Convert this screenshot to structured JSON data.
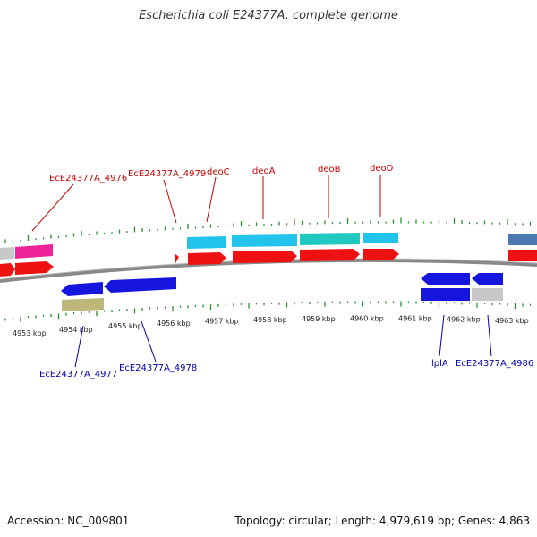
{
  "title": "Escherichia coli E24377A, complete genome",
  "footer": {
    "accession": "Accession: NC_009801",
    "summary": "Topology: circular; Length: 4,979,619 bp; Genes: 4,863"
  },
  "colors": {
    "forward_label": "#cc0000",
    "reverse_label": "#0000aa",
    "gc_tick": "#2e8b2e",
    "cds_red": "#ee1111",
    "cds_blue": "#1515dd",
    "cds_cyan": "#22c4ec",
    "cds_teal": "#20c8c0",
    "gene_pink": "#ee2299",
    "gene_grey": "#c8c8c8",
    "gene_olive": "#bdb77a",
    "gene_steel": "#4a78b0"
  },
  "scale": {
    "labels": [
      "4953 kbp",
      "4954 kbp",
      "4955 kbp",
      "4956 kbp",
      "4957 kbp",
      "4958 kbp",
      "4959 kbp",
      "4960 kbp",
      "4961 kbp",
      "4962 kbp",
      "4963 kbp"
    ]
  },
  "forward_labels": [
    {
      "name": "label-ece24377a-4976",
      "text": "EcE24377A_4976"
    },
    {
      "name": "label-ece24377a-4979",
      "text": "EcE24377A_4979"
    },
    {
      "name": "label-deoc",
      "text": "deoC"
    },
    {
      "name": "label-deoa",
      "text": "deoA"
    },
    {
      "name": "label-deob",
      "text": "deoB"
    },
    {
      "name": "label-deod",
      "text": "deoD"
    }
  ],
  "reverse_labels": [
    {
      "name": "label-ece24377a-4977",
      "text": "EcE24377A_4977"
    },
    {
      "name": "label-ece24377a-4978",
      "text": "EcE24377A_4978"
    },
    {
      "name": "label-ipla",
      "text": "lplA"
    },
    {
      "name": "label-ece24377a-4986",
      "text": "EcE24377A_4986"
    }
  ]
}
